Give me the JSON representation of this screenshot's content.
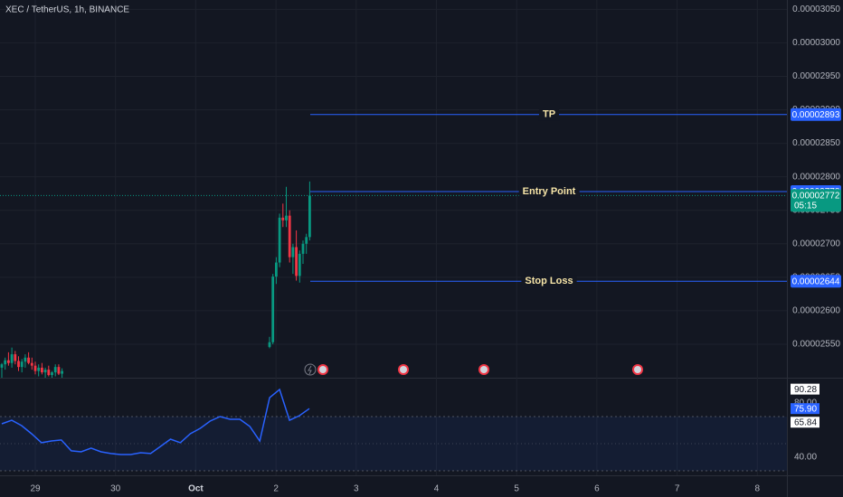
{
  "chart_data": [
    {
      "type": "candlestick",
      "title": "XEC / TetherUS, 1h, BINANCE",
      "categories": [
        "29",
        "30",
        "Oct",
        "2",
        "3",
        "4",
        "5",
        "6",
        "7",
        "8"
      ],
      "open": [
        2.515e-05,
        2.52e-05,
        2.526e-05,
        2.522e-05,
        2.535e-05,
        2.525e-05,
        2.516e-05,
        2.524e-05,
        2.53e-05,
        2.522e-05,
        2.518e-05,
        2.51e-05,
        2.515e-05,
        2.508e-05,
        2.512e-05,
        2.504e-05,
        2.508e-05,
        2.516e-05,
        2.506e-05,
        null,
        null,
        null,
        null,
        null,
        null,
        null,
        null,
        null,
        null,
        null,
        null,
        null,
        null,
        null,
        null,
        null,
        null,
        null,
        null,
        null,
        null,
        null,
        null,
        null,
        null,
        null,
        null,
        null,
        null,
        null,
        null,
        null,
        null,
        null,
        null,
        null,
        null,
        null,
        null,
        null,
        null,
        null,
        null,
        null,
        null,
        null,
        null,
        null,
        null,
        null,
        null,
        null,
        null,
        null,
        null,
        null,
        null,
        null,
        null,
        null,
        2.546e-05,
        2.553e-05,
        2.651e-05,
        2.672e-05,
        2.739e-05,
        2.735e-05,
        2.742e-05,
        2.68e-05,
        2.695e-05,
        2.652e-05,
        2.685e-05,
        2.7e-05,
        2.71e-05
      ],
      "high": [
        2.522e-05,
        2.53e-05,
        2.538e-05,
        2.545e-05,
        2.54e-05,
        2.532e-05,
        2.528e-05,
        2.535e-05,
        2.538e-05,
        2.53e-05,
        2.524e-05,
        2.52e-05,
        2.522e-05,
        2.515e-05,
        2.518e-05,
        2.51e-05,
        2.52e-05,
        2.52e-05,
        2.514e-05,
        null,
        null,
        null,
        null,
        null,
        null,
        null,
        null,
        null,
        null,
        null,
        null,
        null,
        null,
        null,
        null,
        null,
        null,
        null,
        null,
        null,
        null,
        null,
        null,
        null,
        null,
        null,
        null,
        null,
        null,
        null,
        null,
        null,
        null,
        null,
        null,
        null,
        null,
        null,
        null,
        null,
        null,
        null,
        null,
        null,
        null,
        null,
        null,
        null,
        null,
        null,
        null,
        null,
        null,
        null,
        null,
        null,
        null,
        null,
        null,
        null,
        2.561e-05,
        2.655e-05,
        2.68e-05,
        2.745e-05,
        2.76e-05,
        2.785e-05,
        2.75e-05,
        2.7e-05,
        2.72e-05,
        2.69e-05,
        2.705e-05,
        2.715e-05,
        2.793e-05
      ],
      "low": [
        2.5e-05,
        2.512e-05,
        2.518e-05,
        2.515e-05,
        2.52e-05,
        2.51e-05,
        2.508e-05,
        2.515e-05,
        2.52e-05,
        2.512e-05,
        2.505e-05,
        2.502e-05,
        2.505e-05,
        2.5e-05,
        2.502e-05,
        2.5e-05,
        2.502e-05,
        2.504e-05,
        2.5e-05,
        null,
        null,
        null,
        null,
        null,
        null,
        null,
        null,
        null,
        null,
        null,
        null,
        null,
        null,
        null,
        null,
        null,
        null,
        null,
        null,
        null,
        null,
        null,
        null,
        null,
        null,
        null,
        null,
        null,
        null,
        null,
        null,
        null,
        null,
        null,
        null,
        null,
        null,
        null,
        null,
        null,
        null,
        null,
        null,
        null,
        null,
        null,
        null,
        null,
        null,
        null,
        null,
        null,
        null,
        null,
        null,
        null,
        null,
        null,
        null,
        null,
        2.544e-05,
        2.55e-05,
        2.64e-05,
        2.665e-05,
        2.725e-05,
        2.725e-05,
        2.672e-05,
        2.655e-05,
        2.645e-05,
        2.642e-05,
        2.67e-05,
        2.685e-05,
        2.705e-05
      ],
      "close": [
        2.52e-05,
        2.526e-05,
        2.522e-05,
        2.535e-05,
        2.525e-05,
        2.516e-05,
        2.524e-05,
        2.53e-05,
        2.522e-05,
        2.518e-05,
        2.51e-05,
        2.515e-05,
        2.508e-05,
        2.512e-05,
        2.504e-05,
        2.508e-05,
        2.516e-05,
        2.506e-05,
        2.51e-05,
        null,
        null,
        null,
        null,
        null,
        null,
        null,
        null,
        null,
        null,
        null,
        null,
        null,
        null,
        null,
        null,
        null,
        null,
        null,
        null,
        null,
        null,
        null,
        null,
        null,
        null,
        null,
        null,
        null,
        null,
        null,
        null,
        null,
        null,
        null,
        null,
        null,
        null,
        null,
        null,
        null,
        null,
        null,
        null,
        null,
        null,
        null,
        null,
        null,
        null,
        null,
        null,
        null,
        null,
        null,
        null,
        null,
        null,
        null,
        null,
        null,
        2.553e-05,
        2.651e-05,
        2.672e-05,
        2.739e-05,
        2.735e-05,
        2.742e-05,
        2.68e-05,
        2.695e-05,
        2.652e-05,
        2.685e-05,
        2.7e-05,
        2.71e-05,
        2.772e-05
      ],
      "up_color": "#089981",
      "down_color": "#f23645",
      "ylim": [
        2.5e-05,
        3.064e-05
      ],
      "yticks": [
        {
          "value": 2.55e-05,
          "label": "0.00002550"
        },
        {
          "value": 2.6e-05,
          "label": "0.00002600"
        },
        {
          "value": 2.65e-05,
          "label": "0.00002650"
        },
        {
          "value": 2.7e-05,
          "label": "0.00002700"
        },
        {
          "value": 2.75e-05,
          "label": "0.00002750"
        },
        {
          "value": 2.8e-05,
          "label": "0.00002800"
        },
        {
          "value": 2.85e-05,
          "label": "0.00002850"
        },
        {
          "value": 2.9e-05,
          "label": "0.00002900"
        },
        {
          "value": 2.95e-05,
          "label": "0.00002950"
        },
        {
          "value": 3e-05,
          "label": "0.00003000"
        },
        {
          "value": 3.05e-05,
          "label": "0.00003050"
        }
      ],
      "grid": true,
      "levels": [
        {
          "label": "TP",
          "value": 2.893e-05
        },
        {
          "label": "Entry Point",
          "value": 2.778e-05
        },
        {
          "label": "Stop Loss",
          "value": 2.644e-05
        }
      ],
      "level_color": "#2962ff",
      "current_price": {
        "value": 2.772e-05,
        "countdown": "05:15"
      }
    },
    {
      "type": "line",
      "color": "#2962ff",
      "values": [
        64.7,
        67.3,
        63.3,
        57.3,
        50.7,
        52,
        52.7,
        44.7,
        44,
        46.7,
        44,
        42.7,
        42,
        42,
        43.3,
        42.7,
        48,
        53.3,
        50.7,
        57.3,
        61.3,
        66.7,
        70,
        68,
        68,
        62.7,
        52,
        84,
        90,
        67.3,
        70.7,
        75.9
      ],
      "ylim": [
        29.3,
        98.7
      ],
      "yticks": [
        {
          "value": 40,
          "label": "40.00"
        },
        {
          "value": 80,
          "label": "80.00"
        }
      ],
      "band": [
        30,
        70
      ],
      "midline": 50,
      "tags": [
        {
          "value": 90.28,
          "label": "90.28"
        },
        {
          "value": 75.9,
          "label": "75.90"
        },
        {
          "value": 65.84,
          "label": "65.84"
        }
      ]
    }
  ]
}
